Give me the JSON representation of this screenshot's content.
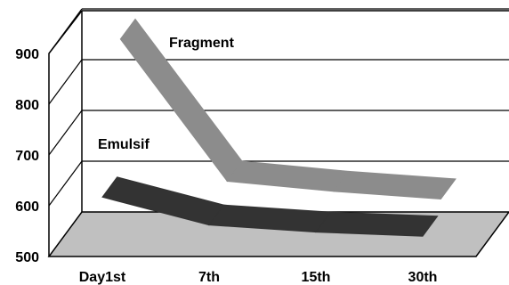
{
  "chart_data": {
    "type": "line",
    "style": "3d-ribbon",
    "categories": [
      "Day1st",
      "7th",
      "15th",
      "30th"
    ],
    "series": [
      {
        "name": "Fragment",
        "values": [
          880,
          600,
          580,
          565
        ]
      },
      {
        "name": "Emulsif",
        "values": [
          617,
          562,
          548,
          540
        ]
      }
    ],
    "ylim": [
      500,
      900
    ],
    "yticks": [
      500,
      600,
      700,
      800,
      900
    ],
    "grid": true,
    "legend": "inline labels",
    "colors": {
      "Fragment": "#8c8c8c",
      "Emulsif": "#333333",
      "floor": "#c0c0c0",
      "grid": "#000000"
    }
  }
}
